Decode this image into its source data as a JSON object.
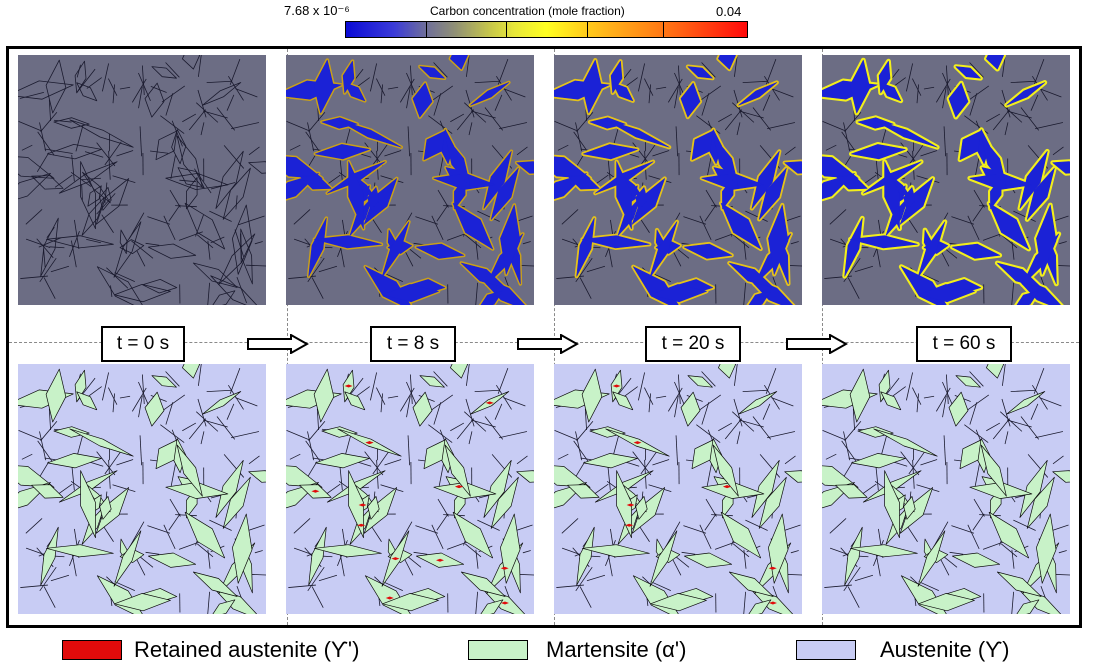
{
  "colorbar": {
    "min_label": "7.68 x 10⁻⁶",
    "title": "Carbon concentration (mole fraction)",
    "max_label": "0.04",
    "colors": [
      "#0a0ad6",
      "#6f6f9a",
      "#ffff22",
      "#ff8e16",
      "#ff0a0a"
    ]
  },
  "time_labels": [
    "t = 0 s",
    "t = 8 s",
    "t = 20 s",
    "t = 60 s"
  ],
  "legend": [
    {
      "label": "Retained austenite (ϒ')",
      "color": "#e10b0b"
    },
    {
      "label": "Martensite (α')",
      "color": "#c8f2c8"
    },
    {
      "label": "Austenite (ϒ)",
      "color": "#c8ccf4"
    }
  ],
  "colors": {
    "austenite_carbon_map": "#6c6d84",
    "martensite_carbon_map": "#1b22d6",
    "carbon_rim_low": "#c9a01a",
    "carbon_rim_high": "#f2ee1c",
    "grain_boundary": "#1a1a2e",
    "martensite_phase": "#c8f2c8",
    "austenite_phase": "#c8ccf4",
    "retained_austenite": "#e10b0b"
  }
}
